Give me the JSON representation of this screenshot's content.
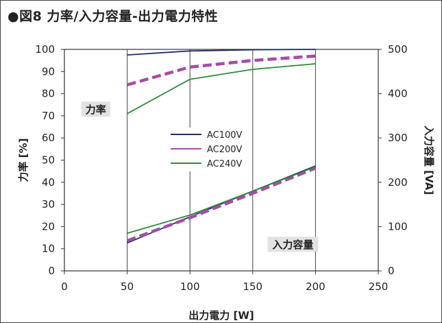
{
  "title": "●図8 力率/入力容量-出力電力特性",
  "chart_data": {
    "type": "line",
    "xlabel": "出力電力 [W]",
    "ylabel_left": "力率 [%]",
    "ylabel_right": "入力容量 [VA]",
    "xlim": [
      0,
      250
    ],
    "xticks": [
      0,
      50,
      100,
      150,
      200,
      250
    ],
    "ylim_left": [
      0,
      100
    ],
    "yticks_left": [
      0,
      10,
      20,
      30,
      40,
      50,
      60,
      70,
      80,
      90,
      100
    ],
    "ylim_right": [
      0,
      500
    ],
    "yticks_right": [
      0,
      100,
      200,
      300,
      400,
      500
    ],
    "grid": "vertical",
    "legend": {
      "placement": "center-left",
      "entries": [
        "AC100V",
        "AC200V",
        "AC240V"
      ]
    },
    "annotations": [
      {
        "text": "力率",
        "x": 25,
        "y": 73,
        "axis": "left"
      },
      {
        "text": "入力容量",
        "x": 182,
        "y": 12,
        "axis": "left"
      }
    ],
    "colors": {
      "AC100V": "#1f2a6b",
      "AC200V": "#a64ca6",
      "AC240V": "#2e8b3a"
    },
    "series": [
      {
        "name": "AC100V",
        "group": "力率",
        "axis": "left",
        "style": "solid",
        "x": [
          50,
          100,
          150,
          200
        ],
        "y": [
          97.5,
          99.3,
          99.8,
          100
        ]
      },
      {
        "name": "AC200V",
        "group": "力率",
        "axis": "left",
        "style": "dashed",
        "x": [
          50,
          100,
          150,
          200
        ],
        "y": [
          84,
          92,
          95,
          97
        ]
      },
      {
        "name": "AC240V",
        "group": "力率",
        "axis": "left",
        "style": "solid",
        "x": [
          50,
          100,
          150,
          200
        ],
        "y": [
          71,
          86.5,
          91,
          93.5
        ]
      },
      {
        "name": "AC100V",
        "group": "入力容量",
        "axis": "right",
        "style": "solid",
        "x": [
          50,
          100,
          150,
          200
        ],
        "y": [
          63,
          122,
          180,
          237
        ]
      },
      {
        "name": "AC200V",
        "group": "入力容量",
        "axis": "right",
        "style": "dashed",
        "x": [
          50,
          100,
          150,
          200
        ],
        "y": [
          68,
          120,
          175,
          232
        ]
      },
      {
        "name": "AC240V",
        "group": "入力容量",
        "axis": "right",
        "style": "solid",
        "x": [
          50,
          100,
          150,
          200
        ],
        "y": [
          85,
          126,
          180,
          235
        ]
      }
    ]
  }
}
